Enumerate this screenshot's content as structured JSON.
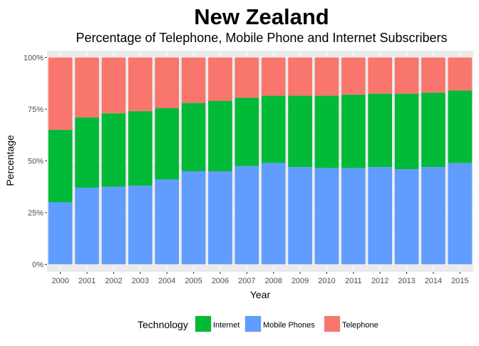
{
  "chart_data": {
    "type": "bar",
    "stacked": true,
    "normalized": true,
    "title": "New Zealand",
    "subtitle": "Percentage of Telephone, Mobile Phone and Internet Subscribers",
    "xlabel": "Year",
    "ylabel": "Percentage",
    "ylim": [
      0,
      1
    ],
    "yticks": [
      "0%",
      "25%",
      "50%",
      "75%",
      "100%"
    ],
    "grid": true,
    "legend_position": "bottom",
    "legend_title": "Technology",
    "categories": [
      "2000",
      "2001",
      "2002",
      "2003",
      "2004",
      "2005",
      "2006",
      "2007",
      "2008",
      "2009",
      "2010",
      "2011",
      "2012",
      "2013",
      "2014",
      "2015"
    ],
    "series": [
      {
        "name": "Mobile Phones",
        "color": "#619CFF",
        "values": [
          0.3,
          0.37,
          0.375,
          0.38,
          0.41,
          0.45,
          0.45,
          0.475,
          0.49,
          0.47,
          0.465,
          0.465,
          0.47,
          0.46,
          0.47,
          0.49
        ]
      },
      {
        "name": "Internet",
        "color": "#00BA38",
        "values": [
          0.35,
          0.34,
          0.355,
          0.36,
          0.345,
          0.33,
          0.34,
          0.33,
          0.325,
          0.345,
          0.35,
          0.355,
          0.355,
          0.365,
          0.36,
          0.35
        ]
      },
      {
        "name": "Telephone",
        "color": "#F8766D",
        "values": [
          0.35,
          0.29,
          0.27,
          0.26,
          0.245,
          0.22,
          0.21,
          0.195,
          0.185,
          0.185,
          0.185,
          0.18,
          0.175,
          0.175,
          0.17,
          0.16
        ]
      }
    ],
    "legend_order": [
      "Internet",
      "Mobile Phones",
      "Telephone"
    ]
  }
}
